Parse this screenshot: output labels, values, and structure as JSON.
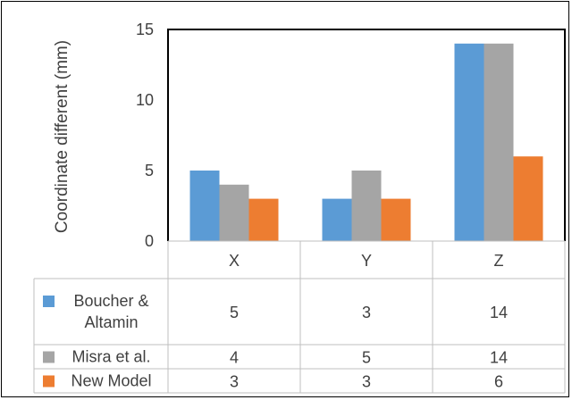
{
  "chart_data": {
    "type": "bar",
    "title": "",
    "xlabel": "",
    "ylabel": "Coordinate different (mm)",
    "ylim": [
      0,
      15
    ],
    "yticks": [
      0,
      5,
      10,
      15
    ],
    "grid": false,
    "legend": "data-table",
    "categories": [
      "X",
      "Y",
      "Z"
    ],
    "series": [
      {
        "name": "Boucher & Altamin",
        "name_lines": [
          "Boucher &",
          "Altamin"
        ],
        "color": "#5B9BD5",
        "values": [
          5,
          3,
          14
        ]
      },
      {
        "name": "Misra et al.",
        "name_lines": [
          "Misra et al."
        ],
        "color": "#A5A5A5",
        "values": [
          4,
          5,
          14
        ]
      },
      {
        "name": "New Model",
        "name_lines": [
          "New Model"
        ],
        "color": "#ED7D31",
        "values": [
          3,
          3,
          6
        ]
      }
    ]
  }
}
